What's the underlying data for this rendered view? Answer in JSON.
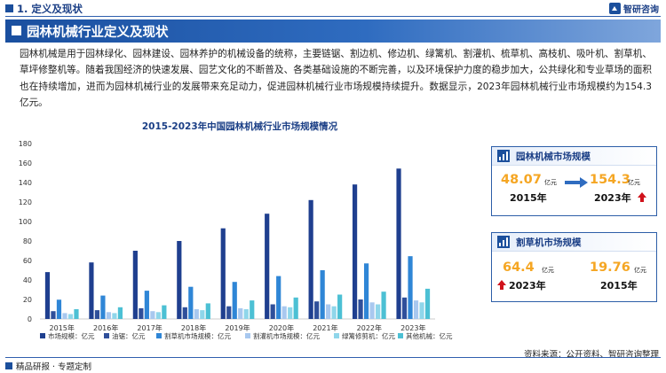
{
  "header": {
    "section_title": "1. 定义及现状",
    "logo_text": "智研咨询"
  },
  "banner": {
    "title": "园林机械行业定义及现状"
  },
  "intro": {
    "paragraph": "园林机械是用于园林绿化、园林建设、园林养护的机械设备的统称，主要链锯、割边机、修边机、绿篱机、割灌机、梳草机、高枝机、吸叶机、割草机、草坪修整机等。随着我国经济的快速发展、园艺文化的不断普及、各类基础设施的不断完善，以及环境保护力度的稳步加大，公共绿化和专业草场的面积也在持续增加，进而为园林机械行业的发展带来充足动力，促进园林机械行业市场规模持续提升。数据显示，2023年园林机械行业市场规模约为154.3亿元。"
  },
  "cards": {
    "garden": {
      "title": "园林机械市场规模",
      "from_value": "48.07",
      "from_unit": "亿元",
      "from_year": "2015年",
      "to_value": "154.3",
      "to_unit": "亿元",
      "to_year": "2023年"
    },
    "mower": {
      "title": "割草机市场规模",
      "left_value": "64.4",
      "left_unit": "亿元",
      "left_year": "2023年",
      "right_value": "19.76",
      "right_unit": "亿元",
      "right_year": "2015年"
    }
  },
  "footer": {
    "left": "精品研报 · 专题定制",
    "right": "资料来源：公开资料、智研咨询整理"
  },
  "colors": {
    "brand_blue": "#1b4f9c",
    "accent_orange": "#f5a623",
    "arrow_red": "#d0121b",
    "arrow_blue": "#2f6cc0"
  },
  "chart_data": {
    "type": "bar",
    "title": "2015-2023年中国园林机械行业市场规模情况",
    "categories": [
      "2015年",
      "2016年",
      "2017年",
      "2018年",
      "2019年",
      "2020年",
      "2021年",
      "2022年",
      "2023年"
    ],
    "ylim": [
      0,
      180
    ],
    "yticks": [
      0,
      20,
      40,
      60,
      80,
      100,
      120,
      140,
      160,
      180
    ],
    "grid": false,
    "legend_position": "bottom",
    "series": [
      {
        "name": "市场规模：亿元",
        "color": "#1f3f8f",
        "values": [
          48.07,
          58,
          70,
          80,
          93,
          108,
          122,
          138,
          154.3
        ]
      },
      {
        "name": "油锯：亿元",
        "color": "#2f4f9a",
        "values": [
          8,
          9,
          11,
          12,
          13,
          15,
          18,
          20,
          22
        ]
      },
      {
        "name": "割草机市场规模：亿元",
        "color": "#2f86d6",
        "values": [
          19.76,
          24,
          29,
          33,
          38,
          44,
          50,
          57,
          64.4
        ]
      },
      {
        "name": "割灌机市场规模：亿元",
        "color": "#a8c8ef",
        "values": [
          6,
          7,
          8,
          10,
          11,
          13,
          15,
          17,
          19
        ]
      },
      {
        "name": "绿篱修剪机：亿元",
        "color": "#8fd6ea",
        "values": [
          5,
          6,
          7,
          9,
          10,
          12,
          13,
          15,
          17
        ]
      },
      {
        "name": "其他机械：亿元",
        "color": "#4cc0d4",
        "values": [
          10,
          12,
          14,
          16,
          19,
          22,
          25,
          28,
          31
        ]
      }
    ]
  }
}
